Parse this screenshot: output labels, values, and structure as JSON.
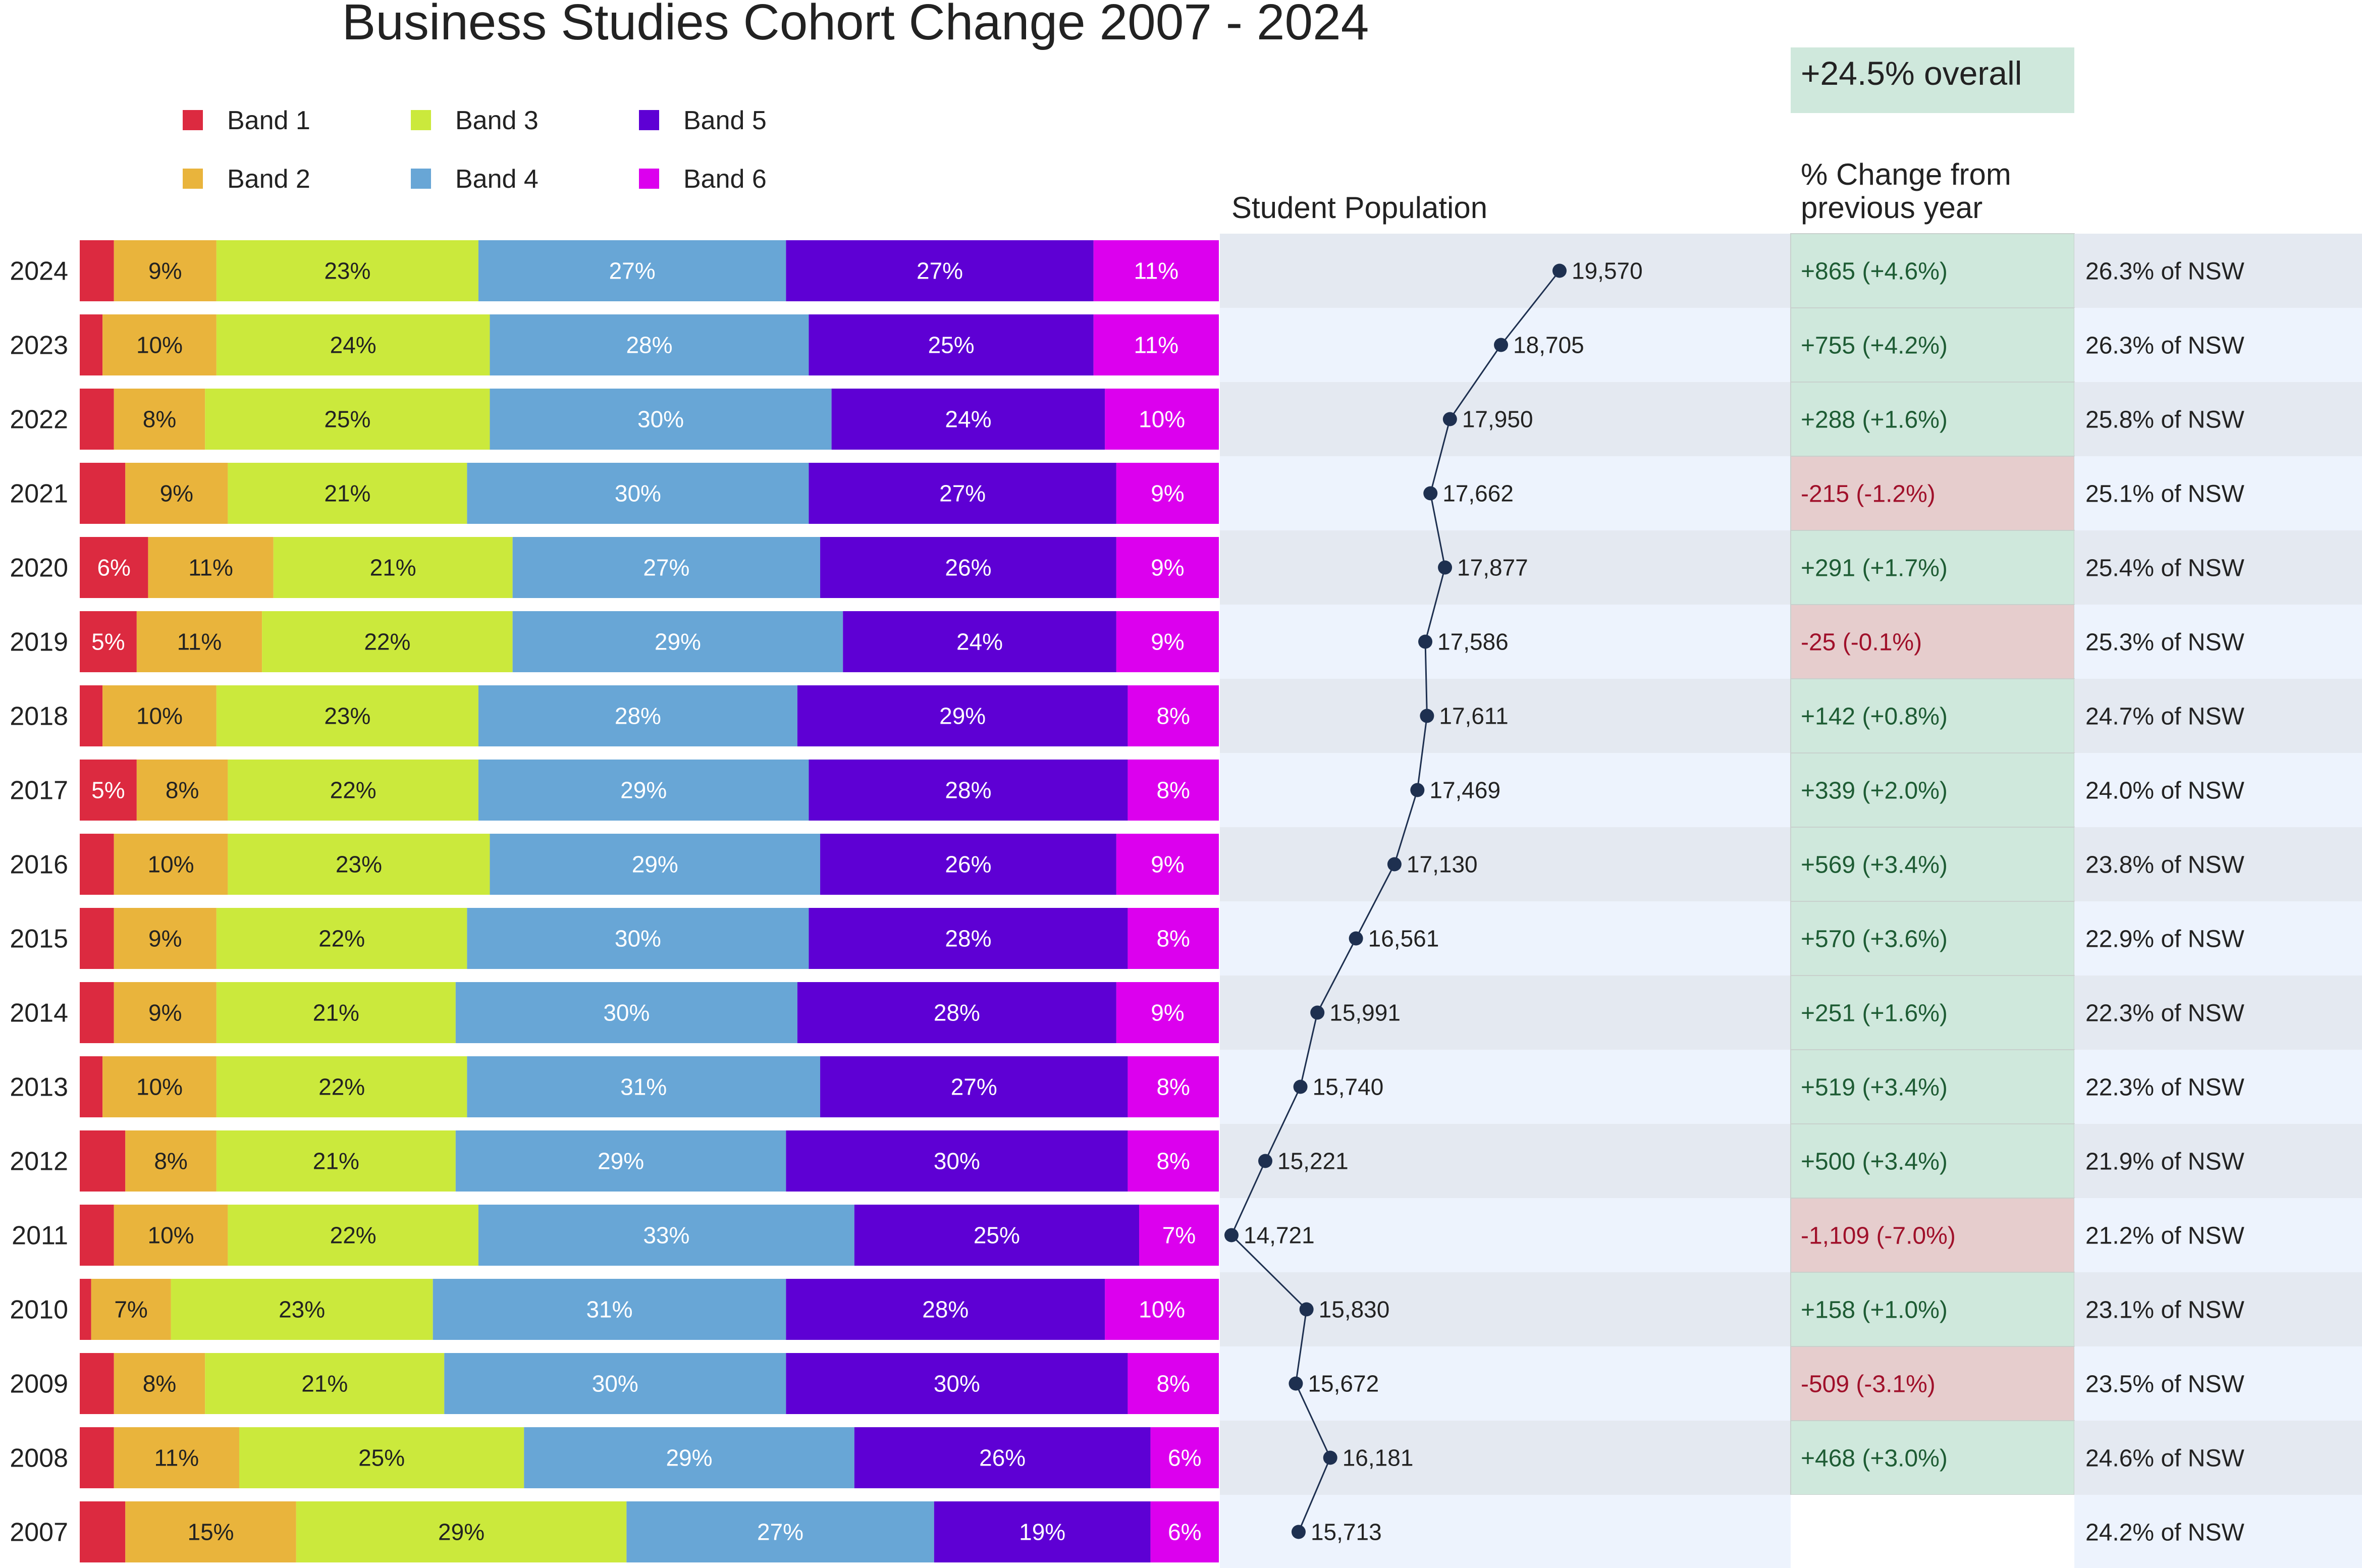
{
  "chart_data": {
    "type": "bar",
    "title": "Business Studies Cohort Change 2007 - 2024",
    "overall_change": "+24.5% overall",
    "population_header": "Student Population",
    "change_header": [
      "% Change from",
      "previous year"
    ],
    "legend": [
      "Band 1",
      "Band 2",
      "Band 3",
      "Band 4",
      "Band 5",
      "Band 6"
    ],
    "colors": {
      "bands": [
        "#dc2a40",
        "#e9b43c",
        "#cbe93c",
        "#68a6d6",
        "#5e00d4",
        "#dc00ee"
      ],
      "positive_bg": "#cfe8dc",
      "negative_bg": "#e6cdcd",
      "positive_text": "#1e5c34",
      "negative_text": "#a0102a",
      "row_dark": "#e4e9f1",
      "row_light": "#edf3fd",
      "line": "#1e3050"
    },
    "rows": [
      {
        "year": "2024",
        "bands": [
          3,
          9,
          23,
          27,
          27,
          11
        ],
        "labels": [
          "",
          "9%",
          "23%",
          "27%",
          "27%",
          "11%"
        ],
        "population": 19570,
        "population_label": "19,570",
        "change": "+865  (+4.6%)",
        "positive": true,
        "share": "26.3% of NSW"
      },
      {
        "year": "2023",
        "bands": [
          2,
          10,
          24,
          28,
          25,
          11
        ],
        "labels": [
          "",
          "10%",
          "24%",
          "28%",
          "25%",
          "11%"
        ],
        "population": 18705,
        "population_label": "18,705",
        "change": "+755  (+4.2%)",
        "positive": true,
        "share": "26.3% of NSW"
      },
      {
        "year": "2022",
        "bands": [
          3,
          8,
          25,
          30,
          24,
          10
        ],
        "labels": [
          "",
          "8%",
          "25%",
          "30%",
          "24%",
          "10%"
        ],
        "population": 17950,
        "population_label": "17,950",
        "change": "+288  (+1.6%)",
        "positive": true,
        "share": "25.8% of NSW"
      },
      {
        "year": "2021",
        "bands": [
          4,
          9,
          21,
          30,
          27,
          9
        ],
        "labels": [
          "",
          "9%",
          "21%",
          "30%",
          "27%",
          "9%"
        ],
        "population": 17662,
        "population_label": "17,662",
        "change": "-215  (-1.2%)",
        "positive": false,
        "share": "25.1% of NSW"
      },
      {
        "year": "2020",
        "bands": [
          6,
          11,
          21,
          27,
          26,
          9
        ],
        "labels": [
          "6%",
          "11%",
          "21%",
          "27%",
          "26%",
          "9%"
        ],
        "population": 17877,
        "population_label": "17,877",
        "change": "+291  (+1.7%)",
        "positive": true,
        "share": "25.4% of NSW"
      },
      {
        "year": "2019",
        "bands": [
          5,
          11,
          22,
          29,
          24,
          9
        ],
        "labels": [
          "5%",
          "11%",
          "22%",
          "29%",
          "24%",
          "9%"
        ],
        "population": 17586,
        "population_label": "17,586",
        "change": "-25  (-0.1%)",
        "positive": false,
        "share": "25.3% of NSW"
      },
      {
        "year": "2018",
        "bands": [
          2,
          10,
          23,
          28,
          29,
          8
        ],
        "labels": [
          "",
          "10%",
          "23%",
          "28%",
          "29%",
          "8%"
        ],
        "population": 17611,
        "population_label": "17,611",
        "change": "+142  (+0.8%)",
        "positive": true,
        "share": "24.7% of NSW"
      },
      {
        "year": "2017",
        "bands": [
          5,
          8,
          22,
          29,
          28,
          8
        ],
        "labels": [
          "5%",
          "8%",
          "22%",
          "29%",
          "28%",
          "8%"
        ],
        "population": 17469,
        "population_label": "17,469",
        "change": "+339  (+2.0%)",
        "positive": true,
        "share": "24.0% of NSW"
      },
      {
        "year": "2016",
        "bands": [
          3,
          10,
          23,
          29,
          26,
          9
        ],
        "labels": [
          "",
          "10%",
          "23%",
          "29%",
          "26%",
          "9%"
        ],
        "population": 17130,
        "population_label": "17,130",
        "change": "+569  (+3.4%)",
        "positive": true,
        "share": "23.8% of NSW"
      },
      {
        "year": "2015",
        "bands": [
          3,
          9,
          22,
          30,
          28,
          8
        ],
        "labels": [
          "",
          "9%",
          "22%",
          "30%",
          "28%",
          "8%"
        ],
        "population": 16561,
        "population_label": "16,561",
        "change": "+570  (+3.6%)",
        "positive": true,
        "share": "22.9% of NSW"
      },
      {
        "year": "2014",
        "bands": [
          3,
          9,
          21,
          30,
          28,
          9
        ],
        "labels": [
          "",
          "9%",
          "21%",
          "30%",
          "28%",
          "9%"
        ],
        "population": 15991,
        "population_label": "15,991",
        "change": "+251  (+1.6%)",
        "positive": true,
        "share": "22.3% of NSW"
      },
      {
        "year": "2013",
        "bands": [
          2,
          10,
          22,
          31,
          27,
          8
        ],
        "labels": [
          "",
          "10%",
          "22%",
          "31%",
          "27%",
          "8%"
        ],
        "population": 15740,
        "population_label": "15,740",
        "change": "+519  (+3.4%)",
        "positive": true,
        "share": "22.3% of NSW"
      },
      {
        "year": "2012",
        "bands": [
          4,
          8,
          21,
          29,
          30,
          8
        ],
        "labels": [
          "",
          "8%",
          "21%",
          "29%",
          "30%",
          "8%"
        ],
        "population": 15221,
        "population_label": "15,221",
        "change": "+500  (+3.4%)",
        "positive": true,
        "share": "21.9% of NSW"
      },
      {
        "year": "2011",
        "bands": [
          3,
          10,
          22,
          33,
          25,
          7
        ],
        "labels": [
          "",
          "10%",
          "22%",
          "33%",
          "25%",
          "7%"
        ],
        "population": 14721,
        "population_label": "14,721",
        "change": "-1,109  (-7.0%)",
        "positive": false,
        "share": "21.2% of NSW"
      },
      {
        "year": "2010",
        "bands": [
          1,
          7,
          23,
          31,
          28,
          10
        ],
        "labels": [
          "",
          "7%",
          "23%",
          "31%",
          "28%",
          "10%"
        ],
        "population": 15830,
        "population_label": "15,830",
        "change": "+158  (+1.0%)",
        "positive": true,
        "share": "23.1% of NSW"
      },
      {
        "year": "2009",
        "bands": [
          3,
          8,
          21,
          30,
          30,
          8
        ],
        "labels": [
          "",
          "8%",
          "21%",
          "30%",
          "30%",
          "8%"
        ],
        "population": 15672,
        "population_label": "15,672",
        "change": "-509  (-3.1%)",
        "positive": false,
        "share": "23.5% of NSW"
      },
      {
        "year": "2008",
        "bands": [
          3,
          11,
          25,
          29,
          26,
          6
        ],
        "labels": [
          "",
          "11%",
          "25%",
          "29%",
          "26%",
          "6%"
        ],
        "population": 16181,
        "population_label": "16,181",
        "change": "+468  (+3.0%)",
        "positive": true,
        "share": "24.6% of NSW"
      },
      {
        "year": "2007",
        "bands": [
          4,
          15,
          29,
          27,
          19,
          6
        ],
        "labels": [
          "",
          "15%",
          "29%",
          "27%",
          "19%",
          "6%"
        ],
        "population": 15713,
        "population_label": "15,713",
        "change": "",
        "positive": null,
        "share": "24.2% of NSW"
      }
    ],
    "population_range": [
      14721,
      19570
    ]
  }
}
